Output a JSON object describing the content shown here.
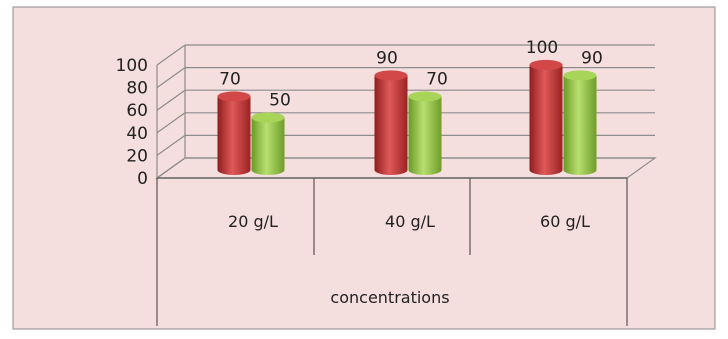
{
  "chart_data": {
    "type": "bar",
    "title": "",
    "xlabel": "concentrations",
    "ylabel": "",
    "categories": [
      "20 g/L",
      "40 g/L",
      "60 g/L"
    ],
    "series": [
      {
        "values": [
          70,
          90,
          100
        ]
      },
      {
        "values": [
          50,
          70,
          90
        ]
      }
    ],
    "ylim": [
      0,
      100
    ],
    "yticks": [
      "0",
      "20",
      "40",
      "60",
      "80",
      "100"
    ],
    "grid": true,
    "legend": "none",
    "colors": {
      "background": "#f5dede",
      "series_1": "#c23535",
      "series_2": "#95c43e",
      "frame": "#8c8c8c"
    }
  }
}
